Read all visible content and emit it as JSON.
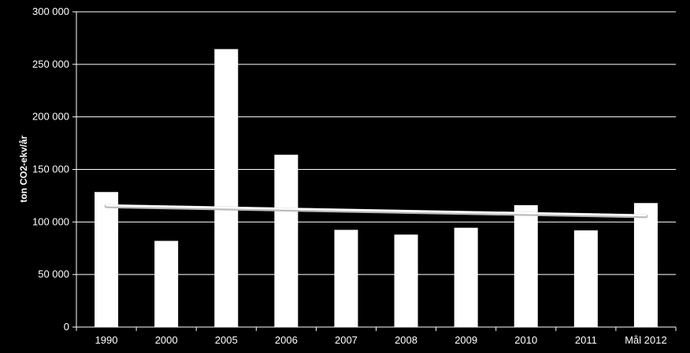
{
  "chart_data": {
    "type": "bar",
    "categories": [
      "1990",
      "2000",
      "2005",
      "2006",
      "2007",
      "2008",
      "2009",
      "2010",
      "2011",
      "Mål 2012"
    ],
    "series": [
      {
        "values": [
          128500,
          82000,
          264500,
          164000,
          92500,
          88000,
          94500,
          116000,
          92000,
          118000
        ]
      }
    ],
    "trendline": {
      "type": "linear",
      "start": 115000,
      "end": 105500
    },
    "ylabel": "ton CO2-ekv/år",
    "ylim": [
      0,
      300000
    ],
    "yticks": [
      0,
      50000,
      100000,
      150000,
      200000,
      250000,
      300000
    ],
    "ytick_labels": [
      "0",
      "50 000",
      "100 000",
      "150 000",
      "200 000",
      "250 000",
      "300 000"
    ],
    "grid": true,
    "legend": "none",
    "colors": {
      "background": "#000000",
      "bar": "#ffffff",
      "grid": "#ffffff",
      "text": "#ffffff",
      "trend": "#ffffff"
    }
  }
}
